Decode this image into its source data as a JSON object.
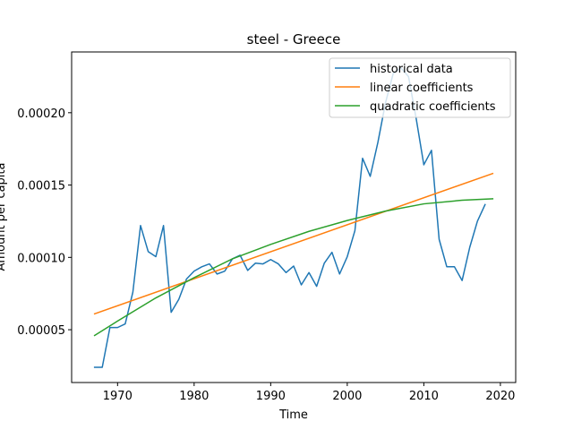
{
  "chart_data": {
    "type": "line",
    "title": "steel - Greece",
    "xlabel": "Time",
    "ylabel": "Amount per capita",
    "xlim": [
      1964,
      2022
    ],
    "ylim": [
      1.35e-05,
      0.000242
    ],
    "xticks": [
      1970,
      1980,
      1990,
      2000,
      2010,
      2020
    ],
    "xtick_labels": [
      "1970",
      "1980",
      "1990",
      "2000",
      "2010",
      "2020"
    ],
    "yticks": [
      5e-05,
      0.0001,
      0.00015,
      0.0002
    ],
    "ytick_labels": [
      "0.00005",
      "0.00010",
      "0.00015",
      "0.00020"
    ],
    "grid": false,
    "legend_position": "upper right",
    "series": [
      {
        "name": "historical data",
        "color": "#1f77b4",
        "x": [
          1967,
          1968,
          1969,
          1970,
          1971,
          1972,
          1973,
          1974,
          1975,
          1976,
          1977,
          1978,
          1979,
          1980,
          1981,
          1982,
          1983,
          1984,
          1985,
          1986,
          1987,
          1988,
          1989,
          1990,
          1991,
          1992,
          1993,
          1994,
          1995,
          1996,
          1997,
          1998,
          1999,
          2000,
          2001,
          2002,
          2003,
          2004,
          2005,
          2006,
          2007,
          2008,
          2009,
          2010,
          2011,
          2012,
          2013,
          2014,
          2015,
          2016,
          2017,
          2018
        ],
        "y": [
          2.4e-05,
          2.4e-05,
          5.15e-05,
          5.15e-05,
          5.4e-05,
          7.6e-05,
          0.000122,
          0.000104,
          0.0001005,
          0.000122,
          6.2e-05,
          7.1e-05,
          8.5e-05,
          9.05e-05,
          9.35e-05,
          9.55e-05,
          8.85e-05,
          9.05e-05,
          9.9e-05,
          0.0001015,
          9.1e-05,
          9.6e-05,
          9.55e-05,
          9.85e-05,
          9.55e-05,
          8.95e-05,
          9.4e-05,
          8.1e-05,
          8.95e-05,
          8e-05,
          9.6e-05,
          0.0001035,
          8.85e-05,
          0.0001005,
          0.0001185,
          0.0001685,
          0.000156,
          0.0001795,
          0.000207,
          0.000227,
          0.000231,
          0.000225,
          0.000196,
          0.000164,
          0.000174,
          0.0001125,
          9.35e-05,
          9.35e-05,
          8.4e-05,
          0.000107,
          0.000125,
          0.0001365
        ]
      },
      {
        "name": "linear coefficients",
        "color": "#ff7f0e",
        "x": [
          1967,
          2019
        ],
        "y": [
          6.1e-05,
          0.000158
        ]
      },
      {
        "name": "quadratic coefficients",
        "color": "#2ca02c",
        "x": [
          1967,
          1970,
          1975,
          1980,
          1985,
          1990,
          1995,
          2000,
          2005,
          2010,
          2015,
          2019
        ],
        "y": [
          4.6e-05,
          5.6e-05,
          7.2e-05,
          8.6e-05,
          9.9e-05,
          0.000109,
          0.000118,
          0.0001255,
          0.000132,
          0.000137,
          0.0001395,
          0.0001405
        ]
      }
    ]
  }
}
